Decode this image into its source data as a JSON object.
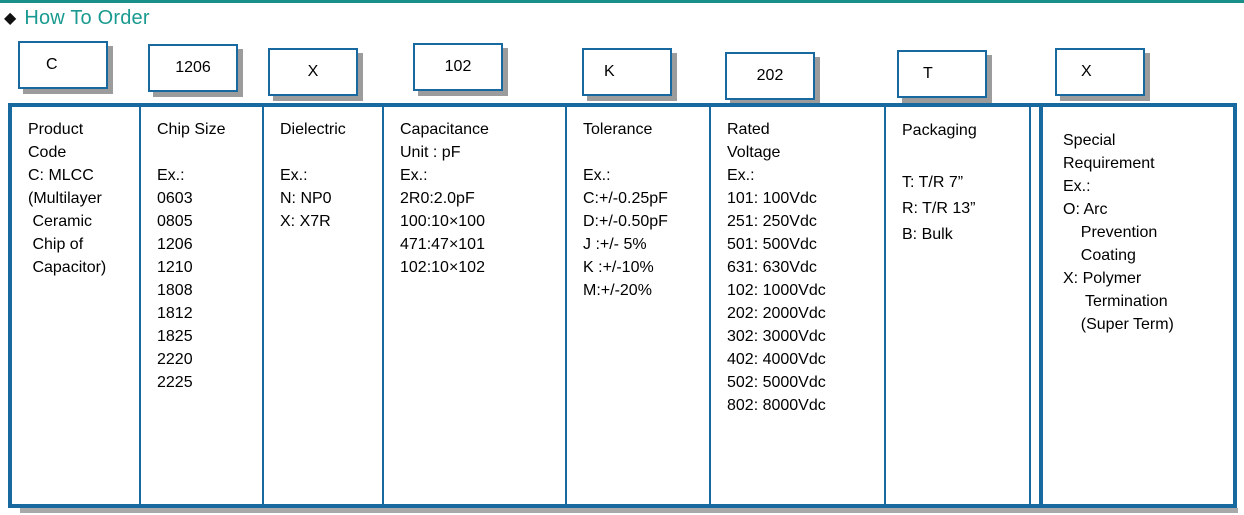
{
  "title": "How To Order",
  "bullet_icon": "◆",
  "colors": {
    "accent_teal": "#1a9a90",
    "border_blue": "#17699f",
    "box_shadow_gray": "#9c9c9c",
    "text": "#000000"
  },
  "codes": [
    {
      "segment": "product-code",
      "value": "C"
    },
    {
      "segment": "chip-size",
      "value": "1206"
    },
    {
      "segment": "dielectric",
      "value": "X"
    },
    {
      "segment": "capacitance",
      "value": "102"
    },
    {
      "segment": "tolerance",
      "value": "K"
    },
    {
      "segment": "rated-voltage",
      "value": "202"
    },
    {
      "segment": "packaging",
      "value": "T"
    },
    {
      "segment": "special-requirement",
      "value": "X"
    }
  ],
  "table": {
    "columns": [
      {
        "name": "product-code",
        "lines": [
          "Product",
          "Code",
          "C: MLCC",
          "(Multilayer",
          " Ceramic",
          " Chip of",
          " Capacitor)"
        ]
      },
      {
        "name": "chip-size",
        "lines": [
          "Chip Size",
          "",
          "Ex.:",
          "0603",
          "0805",
          "1206",
          "1210",
          "1808",
          "1812",
          "1825",
          "2220",
          "2225"
        ]
      },
      {
        "name": "dielectric",
        "lines": [
          "Dielectric",
          "",
          "Ex.:",
          "N: NP0",
          "X: X7R"
        ]
      },
      {
        "name": "capacitance",
        "lines": [
          "Capacitance",
          "Unit : pF",
          "Ex.:",
          "2R0:2.0pF",
          "100:10×100",
          "471:47×101",
          "102:10×102"
        ]
      },
      {
        "name": "tolerance",
        "lines": [
          "Tolerance",
          "",
          "Ex.:",
          "C:+/-0.25pF",
          "D:+/-0.50pF",
          "J :+/- 5%",
          "K :+/-10%",
          "M:+/-20%"
        ]
      },
      {
        "name": "rated-voltage",
        "lines": [
          "Rated",
          "Voltage",
          "Ex.:",
          "101: 100Vdc",
          "251: 250Vdc",
          "501: 500Vdc",
          "631: 630Vdc",
          "102: 1000Vdc",
          "202: 2000Vdc",
          "302: 3000Vdc",
          "402: 4000Vdc",
          "502: 5000Vdc",
          "802: 8000Vdc"
        ]
      },
      {
        "name": "packaging",
        "lines": [
          "Packaging",
          "",
          "T: T/R 7”",
          "R: T/R 13”",
          "B: Bulk"
        ]
      },
      {
        "name": "special-requirement",
        "lines": [
          "Special",
          "Requirement",
          "Ex.:",
          "O: Arc",
          "    Prevention",
          "    Coating",
          "X: Polymer",
          "     Termination",
          "    (Super Term)"
        ]
      }
    ]
  }
}
